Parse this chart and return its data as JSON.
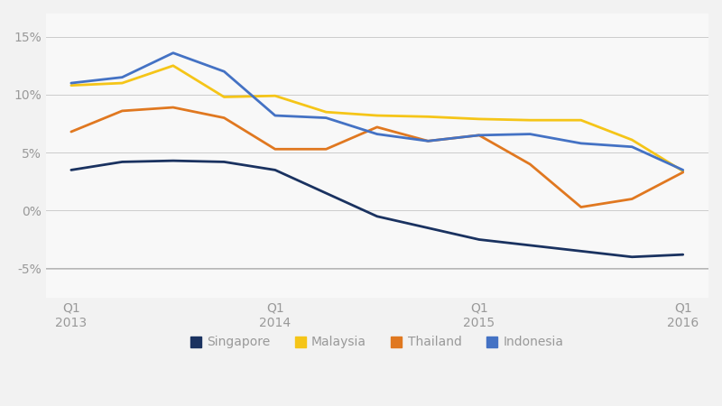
{
  "background_color": "#f2f2f2",
  "plot_bg_color": "#f8f8f8",
  "x_tick_positions": [
    0,
    4,
    8,
    12
  ],
  "x_tick_labels": [
    "Q1\n2013",
    "Q1\n2014",
    "Q1\n2015",
    "Q1\n2016"
  ],
  "ylim": [
    -7.5,
    17
  ],
  "yticks": [
    -5,
    0,
    5,
    10,
    15
  ],
  "ytick_labels": [
    "-5%",
    "0%",
    "5%",
    "10%",
    "15%"
  ],
  "series": [
    {
      "name": "Singapore",
      "color": "#1a3260",
      "values": [
        3.5,
        4.2,
        4.3,
        4.2,
        3.5,
        1.5,
        -0.5,
        -1.5,
        -2.5,
        -3.0,
        -3.5,
        -4.0,
        -3.8
      ]
    },
    {
      "name": "Malaysia",
      "color": "#f5c518",
      "values": [
        10.8,
        11.0,
        12.5,
        9.8,
        9.9,
        8.5,
        8.2,
        8.1,
        7.9,
        7.8,
        7.8,
        6.1,
        3.4
      ]
    },
    {
      "name": "Thailand",
      "color": "#e07820",
      "values": [
        6.8,
        8.6,
        8.9,
        8.0,
        5.3,
        5.3,
        7.2,
        6.0,
        6.5,
        4.0,
        0.3,
        1.0,
        3.3
      ]
    },
    {
      "name": "Indonesia",
      "color": "#4472c4",
      "values": [
        11.0,
        11.5,
        13.6,
        12.0,
        8.2,
        8.0,
        6.6,
        6.0,
        6.5,
        6.6,
        5.8,
        5.5,
        3.5
      ]
    }
  ],
  "legend_items": [
    {
      "name": "Singapore",
      "color": "#1a3260"
    },
    {
      "name": "Malaysia",
      "color": "#f5c518"
    },
    {
      "name": "Thailand",
      "color": "#e07820"
    },
    {
      "name": "Indonesia",
      "color": "#4472c4"
    }
  ]
}
